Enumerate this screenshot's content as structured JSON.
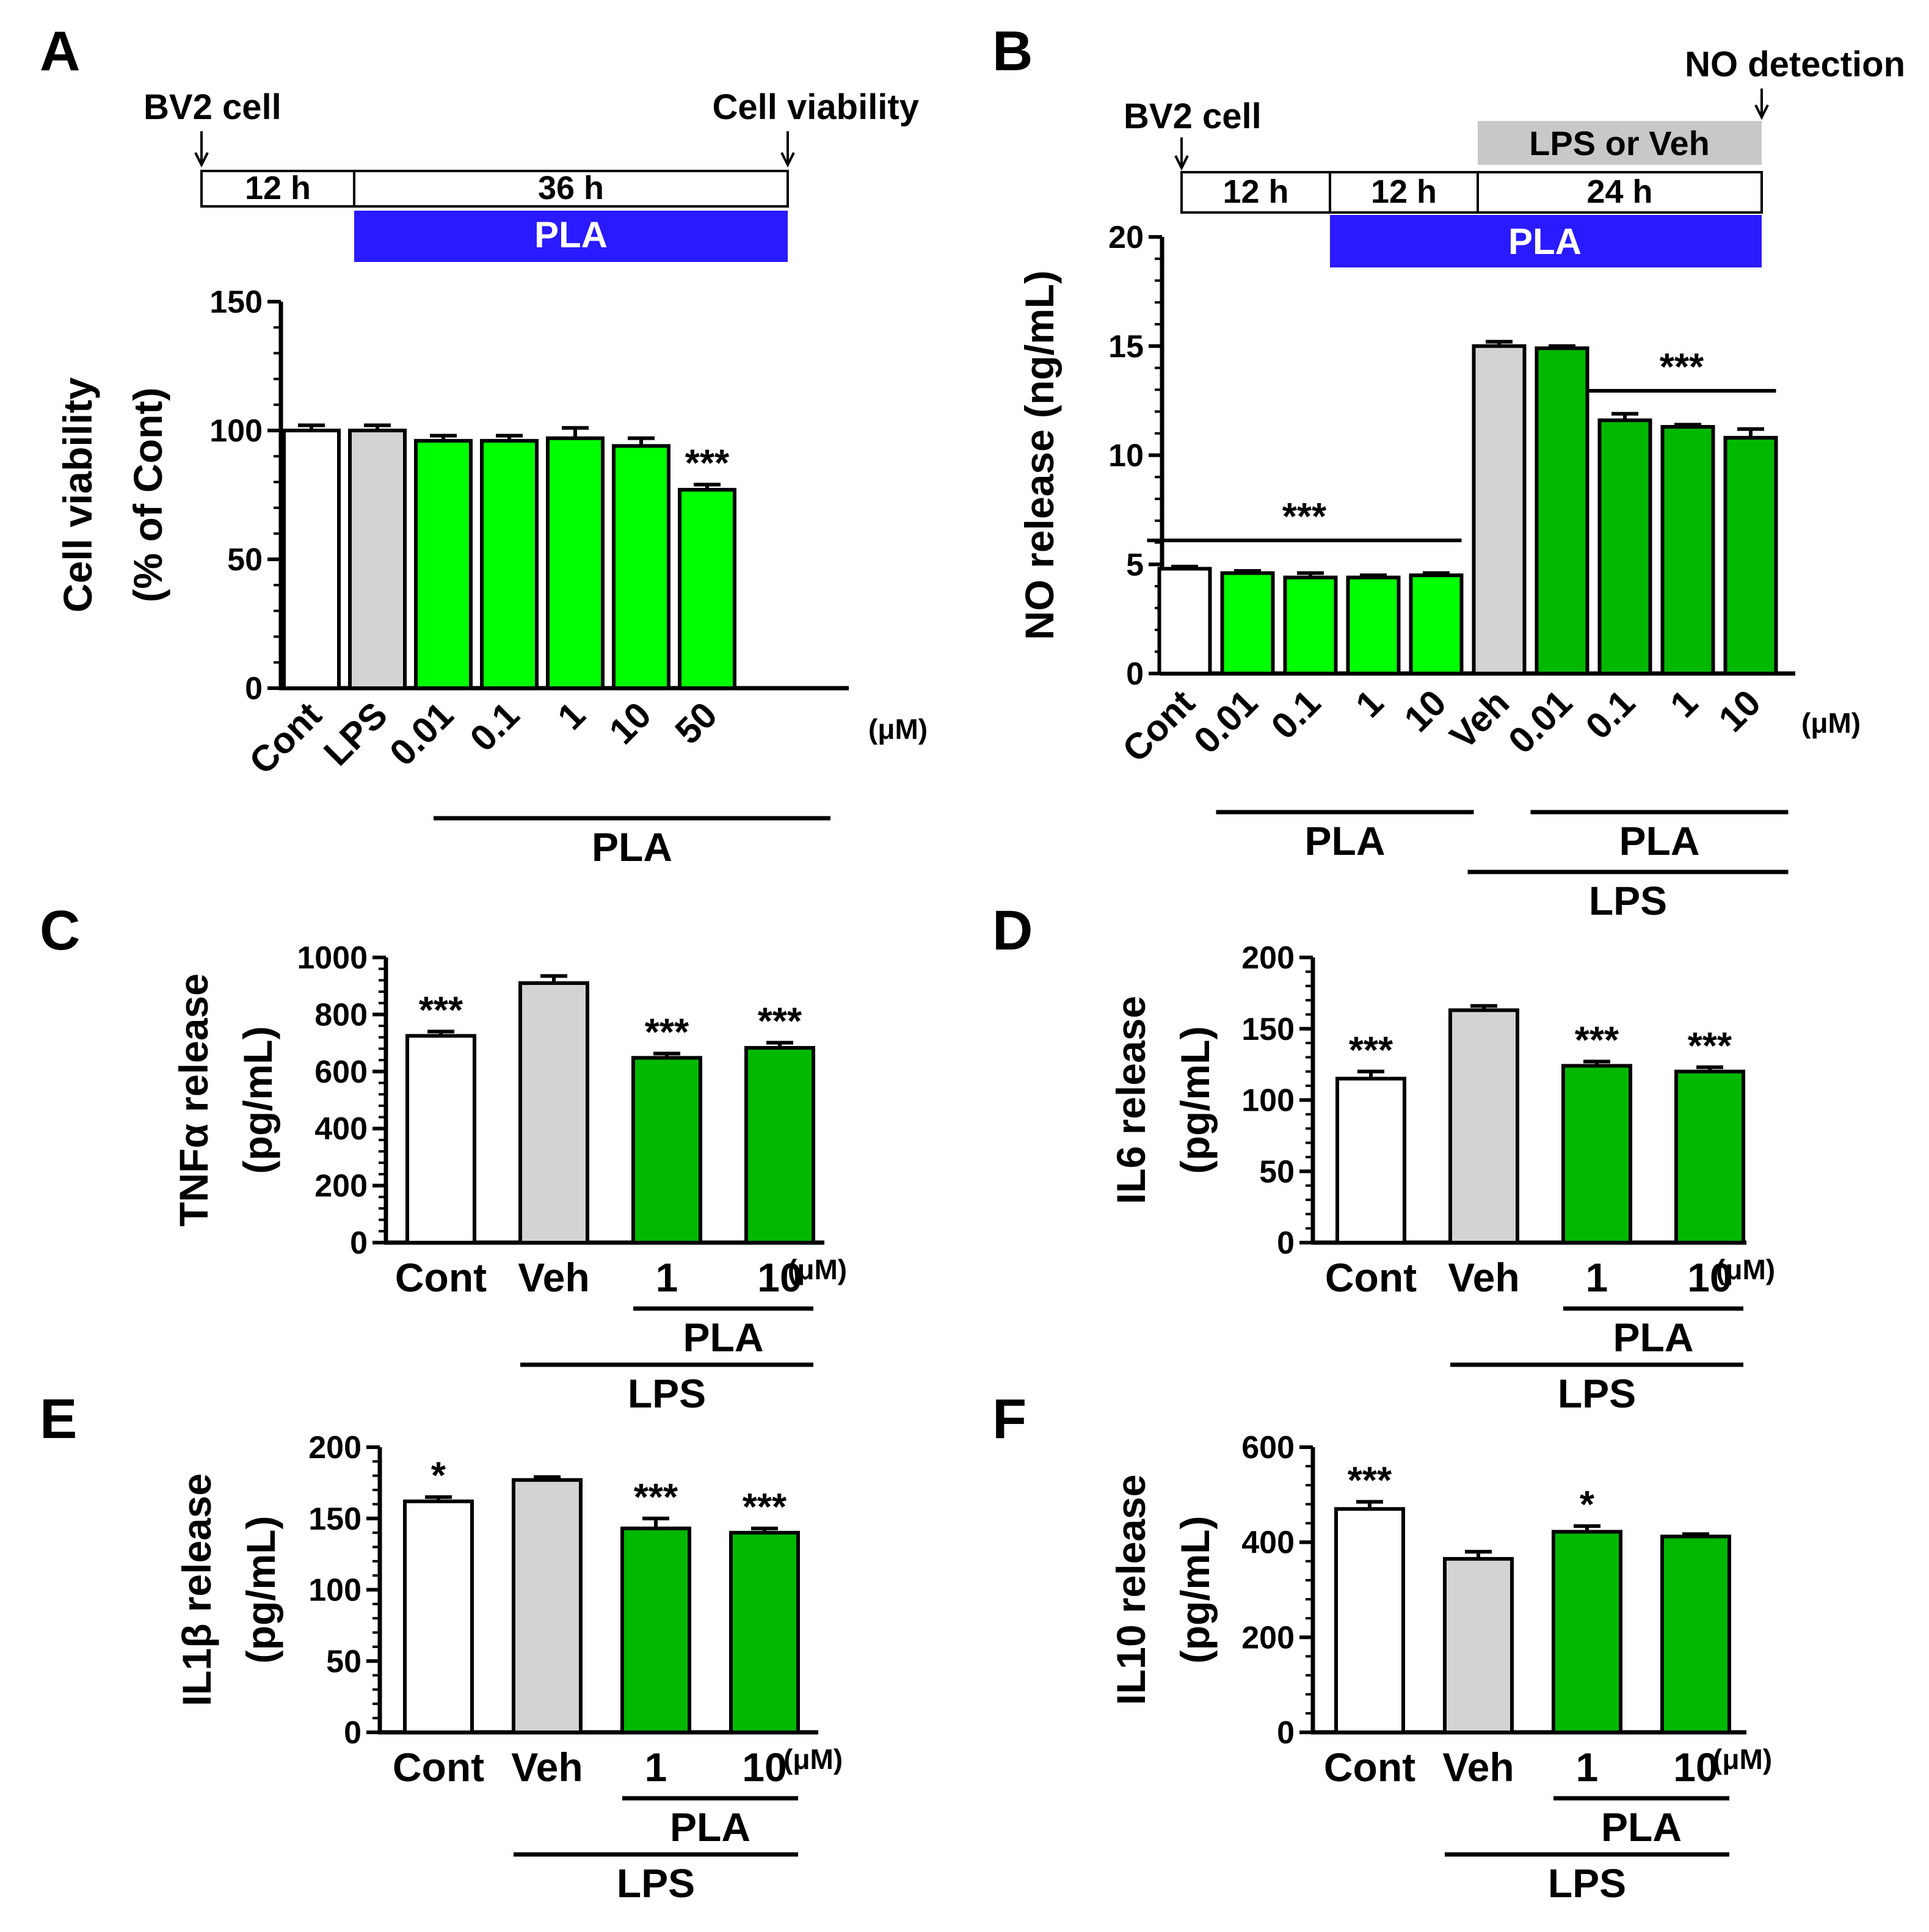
{
  "colors": {
    "pla_light_green": "#00ff00",
    "pla_dark_green": "#00b800",
    "lps_gray": "#d3d3d3",
    "control_white": "#ffffff",
    "pla_timeline_blue": "#2a1aff",
    "lps_timeline_gray": "#c8c8c8"
  },
  "chart_data": [
    {
      "panel": "A",
      "type": "bar",
      "ylabel": [
        "Cell viability",
        "(% of Cont)"
      ],
      "ylim": [
        0,
        150
      ],
      "yticks": [
        0,
        50,
        100,
        150
      ],
      "categories": [
        "Cont",
        "LPS",
        "0.01",
        "0.1",
        "1",
        "10",
        "50"
      ],
      "values": [
        100,
        100,
        96,
        96,
        97,
        94,
        77
      ],
      "errors": [
        2,
        2,
        2,
        2,
        4,
        3,
        2
      ],
      "colors": [
        "white",
        "gray",
        "light",
        "light",
        "light",
        "light",
        "light"
      ],
      "significance": [
        "",
        "",
        "",
        "",
        "",
        "",
        "***"
      ],
      "unit": "(μM)",
      "group_labels": [
        {
          "label": "PLA",
          "from": 2,
          "to": 6
        }
      ],
      "timeline": {
        "start_label": "BV2 cell",
        "end_label": "Cell viability",
        "segments": [
          "12 h",
          "36 h"
        ],
        "treatment": "PLA"
      }
    },
    {
      "panel": "B",
      "type": "bar",
      "ylabel": [
        "NO release (ng/mL)"
      ],
      "ylim": [
        0,
        20
      ],
      "yticks": [
        0,
        5,
        10,
        15,
        20
      ],
      "categories": [
        "Cont",
        "0.01",
        "0.1",
        "1",
        "10",
        "Veh",
        "0.01",
        "0.1",
        "1",
        "10"
      ],
      "values": [
        4.8,
        4.6,
        4.4,
        4.4,
        4.5,
        15.0,
        14.9,
        11.6,
        11.3,
        10.8
      ],
      "errors": [
        0.1,
        0.1,
        0.2,
        0.1,
        0.1,
        0.2,
        0.1,
        0.3,
        0.1,
        0.4
      ],
      "colors": [
        "white",
        "light",
        "light",
        "light",
        "light",
        "gray",
        "dark",
        "dark",
        "dark",
        "dark"
      ],
      "unit": "(μM)",
      "significance_lines": [
        {
          "label": "***",
          "from": 0,
          "to": 4
        },
        {
          "label": "***",
          "from": 7,
          "to": 9
        }
      ],
      "group_labels": [
        {
          "label": "PLA",
          "from": 1,
          "to": 4
        },
        {
          "label": "PLA",
          "from": 6,
          "to": 9
        },
        {
          "label": "LPS",
          "from": 5,
          "to": 9
        }
      ],
      "timeline": {
        "start_label": "BV2 cell",
        "end_label": "NO detection",
        "segments": [
          "12 h",
          "12 h",
          "24 h"
        ],
        "stimulus": "LPS or Veh",
        "treatment": "PLA"
      }
    },
    {
      "panel": "C",
      "type": "bar",
      "ylabel": [
        "TNFα release",
        "(pg/mL)"
      ],
      "ylim": [
        0,
        1000
      ],
      "yticks": [
        0,
        200,
        400,
        600,
        800,
        1000
      ],
      "categories": [
        "Cont",
        "Veh",
        "1",
        "10"
      ],
      "values": [
        725,
        910,
        648,
        683
      ],
      "errors": [
        15,
        25,
        15,
        18
      ],
      "colors": [
        "white",
        "gray",
        "dark",
        "dark"
      ],
      "significance": [
        "***",
        "",
        "***",
        "***"
      ],
      "unit": "(μM)",
      "group_labels": [
        {
          "label": "PLA",
          "from": 2,
          "to": 3
        },
        {
          "label": "LPS",
          "from": 1,
          "to": 3
        }
      ]
    },
    {
      "panel": "D",
      "type": "bar",
      "ylabel": [
        "IL6 release",
        "(pg/mL)"
      ],
      "ylim": [
        0,
        200
      ],
      "yticks": [
        0,
        50,
        100,
        150,
        200
      ],
      "categories": [
        "Cont",
        "Veh",
        "1",
        "10"
      ],
      "values": [
        115,
        163,
        124,
        120
      ],
      "errors": [
        5,
        3,
        3,
        3
      ],
      "colors": [
        "white",
        "gray",
        "dark",
        "dark"
      ],
      "significance": [
        "***",
        "",
        "***",
        "***"
      ],
      "unit": "(μM)",
      "group_labels": [
        {
          "label": "PLA",
          "from": 2,
          "to": 3
        },
        {
          "label": "LPS",
          "from": 1,
          "to": 3
        }
      ]
    },
    {
      "panel": "E",
      "type": "bar",
      "ylabel": [
        "IL1β release",
        "(pg/mL)"
      ],
      "ylim": [
        0,
        200
      ],
      "yticks": [
        0,
        50,
        100,
        150,
        200
      ],
      "categories": [
        "Cont",
        "Veh",
        "1",
        "10"
      ],
      "values": [
        162,
        177,
        143,
        140
      ],
      "errors": [
        3,
        2,
        7,
        3
      ],
      "colors": [
        "white",
        "gray",
        "dark",
        "dark"
      ],
      "significance": [
        "*",
        "",
        "***",
        "***"
      ],
      "unit": "(μM)",
      "group_labels": [
        {
          "label": "PLA",
          "from": 2,
          "to": 3
        },
        {
          "label": "LPS",
          "from": 1,
          "to": 3
        }
      ]
    },
    {
      "panel": "F",
      "type": "bar",
      "ylabel": [
        "IL10 release",
        "(pg/mL)"
      ],
      "ylim": [
        0,
        600
      ],
      "yticks": [
        0,
        200,
        400,
        600
      ],
      "categories": [
        "Cont",
        "Veh",
        "1",
        "10"
      ],
      "values": [
        470,
        365,
        422,
        412
      ],
      "errors": [
        15,
        15,
        12,
        5
      ],
      "colors": [
        "white",
        "gray",
        "dark",
        "dark"
      ],
      "significance": [
        "***",
        "",
        "*",
        ""
      ],
      "unit": "(μM)",
      "group_labels": [
        {
          "label": "PLA",
          "from": 2,
          "to": 3
        },
        {
          "label": "LPS",
          "from": 1,
          "to": 3
        }
      ]
    }
  ]
}
